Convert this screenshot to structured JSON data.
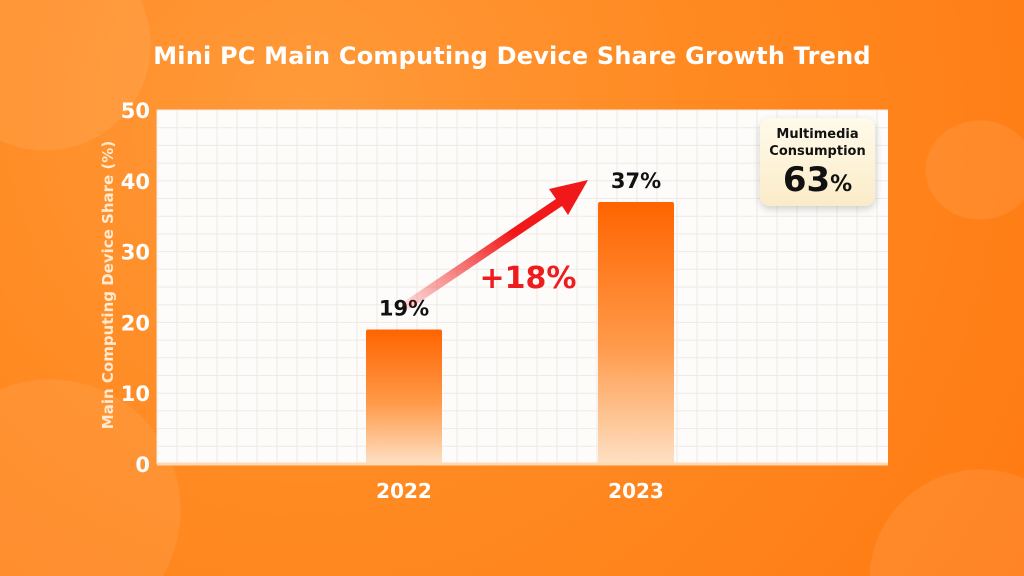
{
  "chart_data": {
    "type": "bar",
    "title": "Mini PC Main Computing Device Share Growth Trend",
    "xlabel": "",
    "ylabel": "Main Computing Device Share (%)",
    "ylim": [
      0,
      50
    ],
    "yticks": [
      0,
      10,
      20,
      30,
      40,
      50
    ],
    "categories": [
      "2022",
      "2023"
    ],
    "values": [
      19,
      37
    ],
    "data_labels": [
      "19%",
      "37%"
    ],
    "grid": true,
    "annotations": {
      "growth": "+18%",
      "callout_label_1": "Multimedia",
      "callout_label_2": "Consumption",
      "callout_value": "63",
      "callout_unit": "%"
    },
    "colors": {
      "bar": "#ff6a00",
      "arrow": "#f01818",
      "background": "#ff8a22"
    }
  }
}
